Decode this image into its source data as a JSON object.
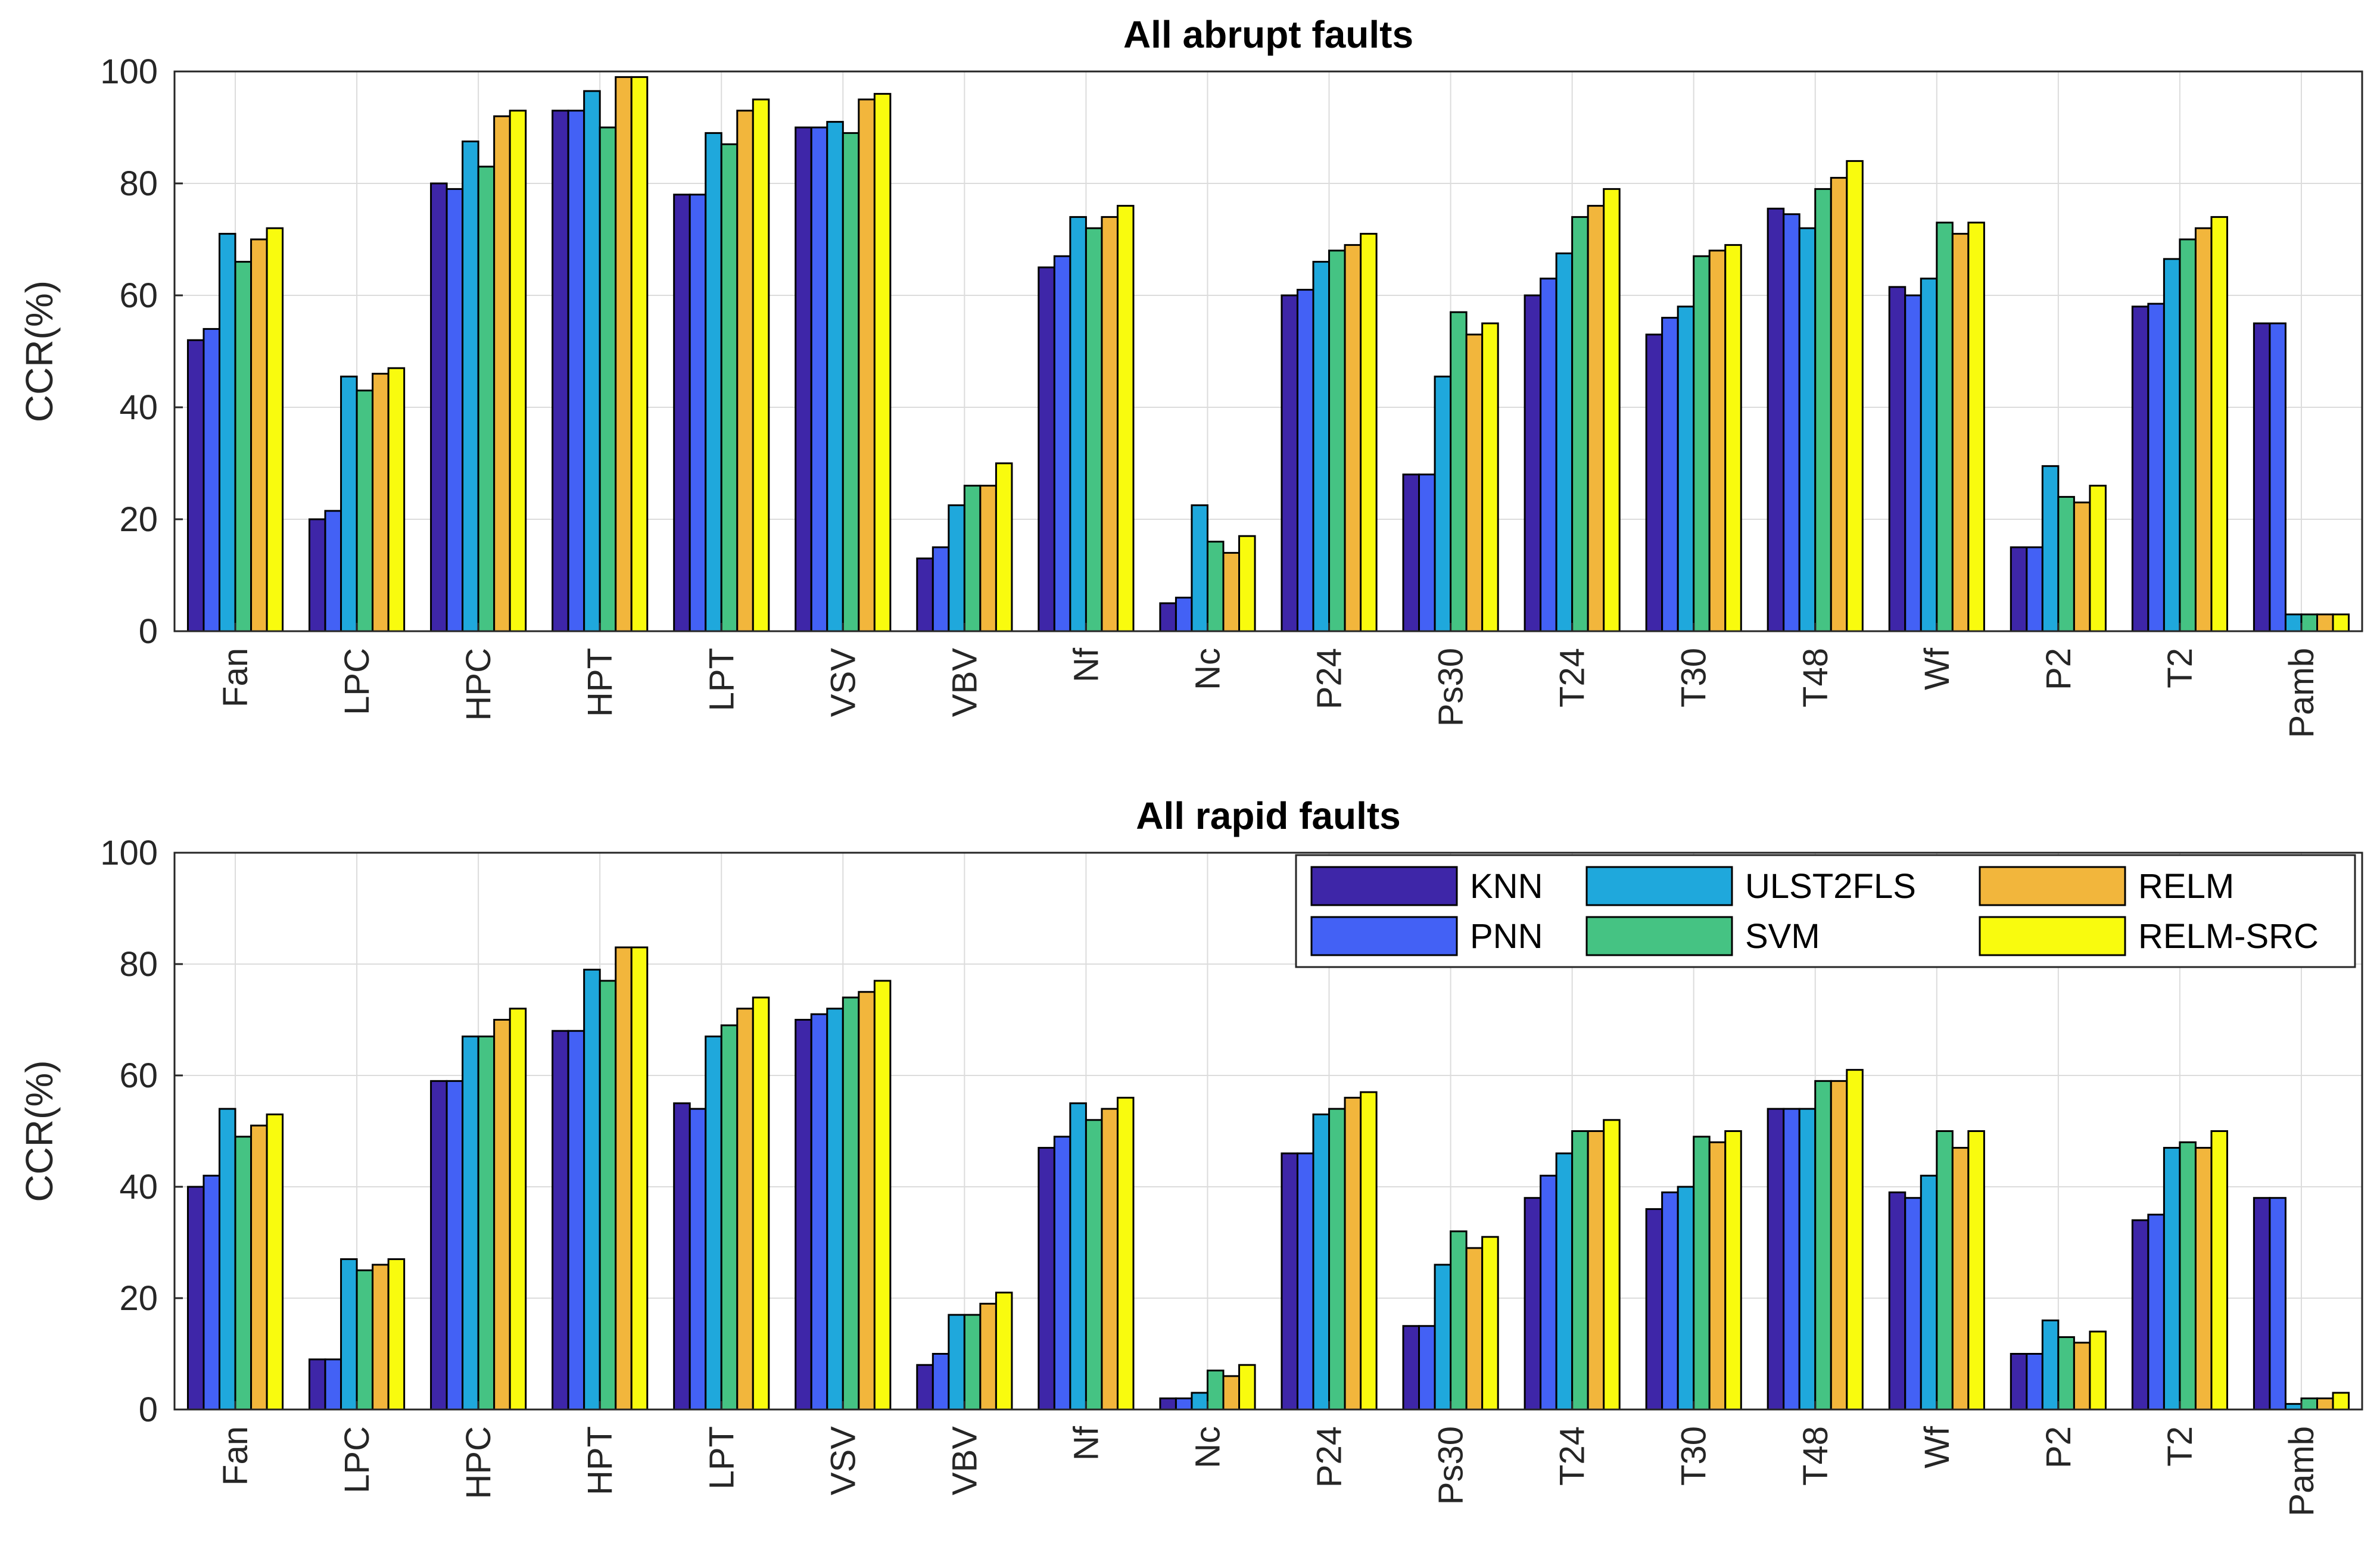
{
  "chart_data": [
    {
      "type": "bar",
      "title": "All abrupt faults",
      "xlabel": "",
      "ylabel": "CCR(%)",
      "ylim": [
        0,
        100
      ],
      "yticks": [
        0,
        20,
        40,
        60,
        80,
        100
      ],
      "grid": true,
      "categories": [
        "Fan",
        "LPC",
        "HPC",
        "HPT",
        "LPT",
        "VSV",
        "VBV",
        "Nf",
        "Nc",
        "P24",
        "Ps30",
        "T24",
        "T30",
        "T48",
        "Wf",
        "P2",
        "T2",
        "Pamb"
      ],
      "series": [
        {
          "name": "KNN",
          "color": "#3e26a8",
          "values": [
            52,
            20,
            80,
            93,
            78,
            90,
            13,
            65,
            5,
            60,
            28,
            60,
            53,
            75.5,
            61.5,
            15,
            58,
            55
          ]
        },
        {
          "name": "PNN",
          "color": "#4361f5",
          "values": [
            54,
            21.5,
            79,
            93,
            78,
            90,
            15,
            67,
            6,
            61,
            28,
            63,
            56,
            74.5,
            60,
            15,
            58.5,
            55
          ]
        },
        {
          "name": "ULST2FLS",
          "color": "#1fa8dc",
          "values": [
            71,
            45.5,
            87.5,
            96.5,
            89,
            91,
            22.5,
            74,
            22.5,
            66,
            45.5,
            67.5,
            58,
            72,
            63,
            29.5,
            66.5,
            3
          ]
        },
        {
          "name": "SVM",
          "color": "#45c383",
          "values": [
            66,
            43,
            83,
            90,
            87,
            89,
            26,
            72,
            16,
            68,
            57,
            74,
            67,
            79,
            73,
            24,
            70,
            3
          ]
        },
        {
          "name": "RELM",
          "color": "#f2b63c",
          "values": [
            70,
            46,
            92,
            99,
            93,
            95,
            26,
            74,
            14,
            69,
            53,
            76,
            68,
            81,
            71,
            23,
            72,
            3
          ]
        },
        {
          "name": "RELM-SRC",
          "color": "#f9fb0e",
          "values": [
            72,
            47,
            93,
            99,
            95,
            96,
            30,
            76,
            17,
            71,
            55,
            79,
            69,
            84,
            73,
            26,
            74,
            3
          ]
        }
      ]
    },
    {
      "type": "bar",
      "title": "All rapid faults",
      "xlabel": "",
      "ylabel": "CCR(%)",
      "ylim": [
        0,
        100
      ],
      "yticks": [
        0,
        20,
        40,
        60,
        80,
        100
      ],
      "grid": true,
      "legend_position": "top-right",
      "categories": [
        "Fan",
        "LPC",
        "HPC",
        "HPT",
        "LPT",
        "VSV",
        "VBV",
        "Nf",
        "Nc",
        "P24",
        "Ps30",
        "T24",
        "T30",
        "T48",
        "Wf",
        "P2",
        "T2",
        "Pamb"
      ],
      "series": [
        {
          "name": "KNN",
          "color": "#3e26a8",
          "values": [
            40,
            9,
            59,
            68,
            55,
            70,
            8,
            47,
            2,
            46,
            15,
            38,
            36,
            54,
            39,
            10,
            34,
            38
          ]
        },
        {
          "name": "PNN",
          "color": "#4361f5",
          "values": [
            42,
            9,
            59,
            68,
            54,
            71,
            10,
            49,
            2,
            46,
            15,
            42,
            39,
            54,
            38,
            10,
            35,
            38
          ]
        },
        {
          "name": "ULST2FLS",
          "color": "#1fa8dc",
          "values": [
            54,
            27,
            67,
            79,
            67,
            72,
            17,
            55,
            3,
            53,
            26,
            46,
            40,
            54,
            42,
            16,
            47,
            1
          ]
        },
        {
          "name": "SVM",
          "color": "#45c383",
          "values": [
            49,
            25,
            67,
            77,
            69,
            74,
            17,
            52,
            7,
            54,
            32,
            50,
            49,
            59,
            50,
            13,
            48,
            2
          ]
        },
        {
          "name": "RELM",
          "color": "#f2b63c",
          "values": [
            51,
            26,
            70,
            83,
            72,
            75,
            19,
            54,
            6,
            56,
            29,
            50,
            48,
            59,
            47,
            12,
            47,
            2
          ]
        },
        {
          "name": "RELM-SRC",
          "color": "#f9fb0e",
          "values": [
            53,
            27,
            72,
            83,
            74,
            77,
            21,
            56,
            8,
            57,
            31,
            52,
            50,
            61,
            50,
            14,
            50,
            3
          ]
        }
      ]
    }
  ]
}
